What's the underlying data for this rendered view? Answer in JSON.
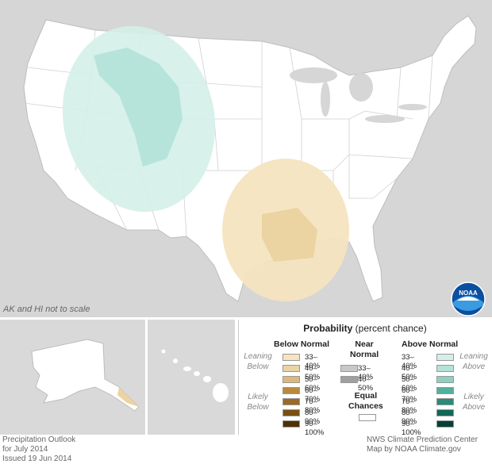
{
  "map": {
    "scale_note": "AK and HI not to scale",
    "logo_text": "NOAA"
  },
  "legend": {
    "title_bold": "Probability",
    "title_rest": "(percent chance)",
    "below_header": "Below Normal",
    "near_header_line1": "Near",
    "near_header_line2": "Normal",
    "above_header": "Above Normal",
    "leaning_below": [
      "Leaning",
      "Below"
    ],
    "likely_below": [
      "Likely",
      "Below"
    ],
    "leaning_above": [
      "Leaning",
      "Above"
    ],
    "likely_above": [
      "Likely",
      "Above"
    ],
    "equal_line1": "Equal",
    "equal_line2": "Chances",
    "below_items": [
      {
        "label": "33–40%",
        "color": "#f5e4bf"
      },
      {
        "label": "40–50%",
        "color": "#ebd3a2"
      },
      {
        "label": "50–60%",
        "color": "#dcb97a"
      },
      {
        "label": "60–70%",
        "color": "#b98a3e"
      },
      {
        "label": "70–80%",
        "color": "#9a6b26"
      },
      {
        "label": "80–90%",
        "color": "#7a4f14"
      },
      {
        "label": "90–100%",
        "color": "#4f2f05"
      }
    ],
    "near_items": [
      {
        "label": "33–40%",
        "color": "#c8c8c8"
      },
      {
        "label": "40–50%",
        "color": "#a0a0a0"
      }
    ],
    "above_items": [
      {
        "label": "33–40%",
        "color": "#d4efe9"
      },
      {
        "label": "40–50%",
        "color": "#b3e2d8"
      },
      {
        "label": "50–60%",
        "color": "#8ed1c3"
      },
      {
        "label": "60–70%",
        "color": "#52b09e"
      },
      {
        "label": "70–80%",
        "color": "#2b8a78"
      },
      {
        "label": "80–90%",
        "color": "#146656"
      },
      {
        "label": "90–100%",
        "color": "#063f34"
      }
    ]
  },
  "footer": {
    "left_line1": "Precipitation Outlook",
    "left_line2": "for July 2014",
    "left_line3": "Issued 19 Jun 2014",
    "right_line1": "NWS Climate Prediction Center",
    "right_line2": "Map by NOAA Climate.gov"
  }
}
